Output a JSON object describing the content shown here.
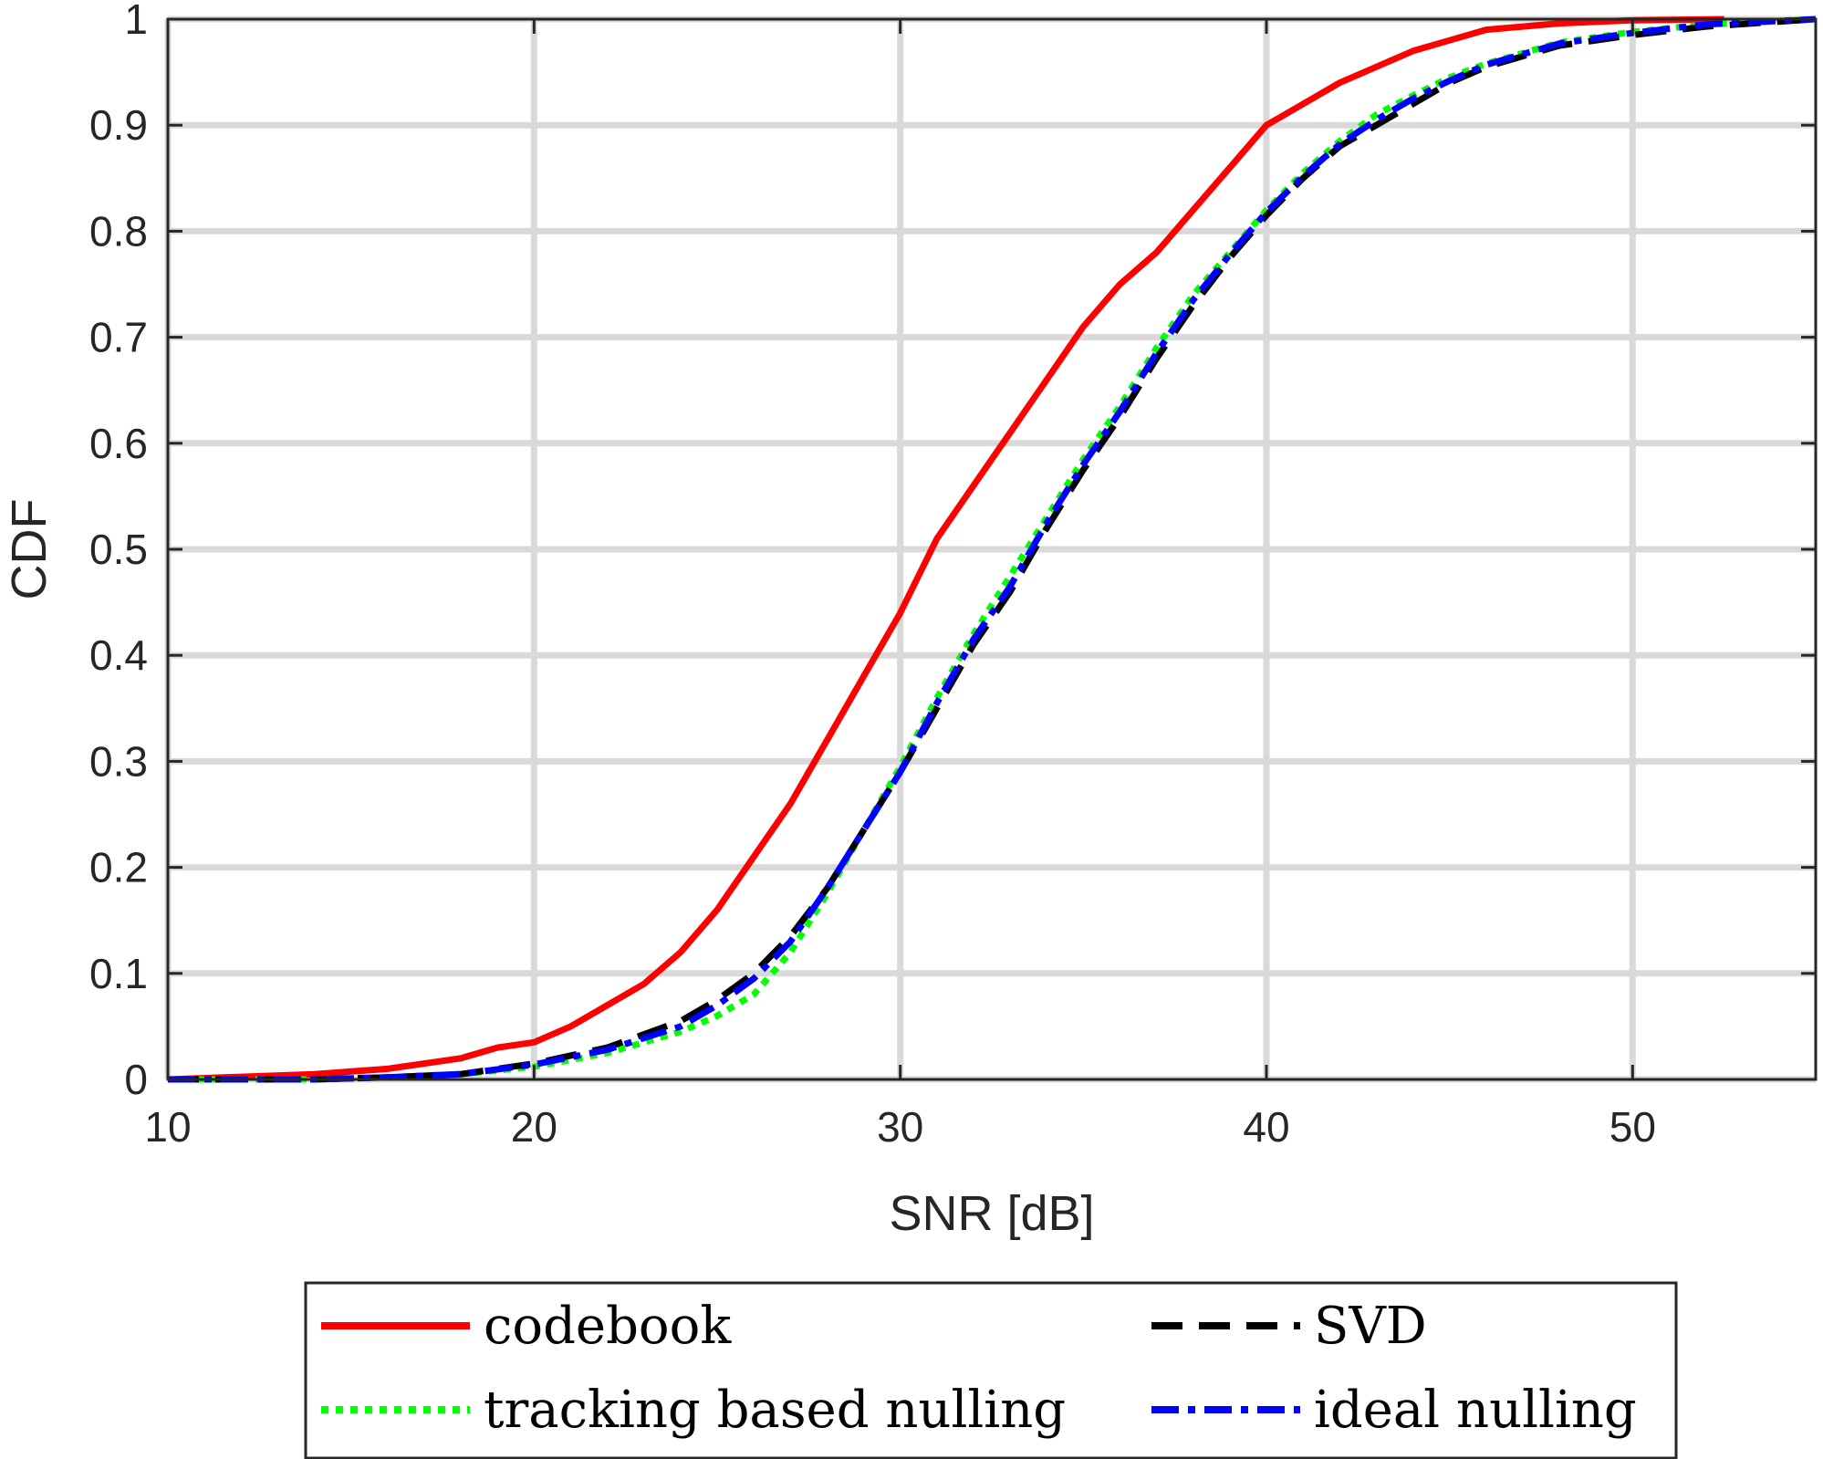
{
  "chart_data": {
    "type": "line",
    "xlabel": "SNR [dB]",
    "ylabel": "CDF",
    "xlim": [
      10,
      55
    ],
    "ylim": [
      0,
      1
    ],
    "xticks": [
      10,
      20,
      30,
      40,
      50
    ],
    "xtick_labels": [
      "10",
      "20",
      "30",
      "40",
      "50"
    ],
    "yticks": [
      0,
      0.1,
      0.2,
      0.3,
      0.4,
      0.5,
      0.6,
      0.7,
      0.8,
      0.9,
      1
    ],
    "ytick_labels": [
      "0",
      "0.1",
      "0.2",
      "0.3",
      "0.4",
      "0.5",
      "0.6",
      "0.7",
      "0.8",
      "0.9",
      "1"
    ],
    "grid": true,
    "legend_position": "bottom-outside",
    "series": [
      {
        "name": "codebook",
        "color": "#ff0000",
        "style": "solid",
        "x": [
          10,
          14,
          16,
          18,
          19,
          20,
          21,
          22,
          23,
          24,
          25,
          26,
          27,
          28,
          29,
          30,
          31,
          32,
          33,
          34,
          35,
          36,
          37,
          38,
          39,
          40,
          41,
          42,
          43,
          44,
          45,
          46,
          47,
          48,
          50,
          52.5
        ],
        "y": [
          0,
          0.005,
          0.01,
          0.02,
          0.03,
          0.035,
          0.05,
          0.07,
          0.09,
          0.12,
          0.16,
          0.21,
          0.26,
          0.32,
          0.38,
          0.44,
          0.51,
          0.56,
          0.61,
          0.66,
          0.71,
          0.75,
          0.78,
          0.82,
          0.86,
          0.9,
          0.92,
          0.94,
          0.955,
          0.97,
          0.98,
          0.99,
          0.993,
          0.996,
          0.999,
          1.0
        ]
      },
      {
        "name": "SVD",
        "color": "#000000",
        "style": "dashed",
        "x": [
          10,
          14,
          16,
          18,
          20,
          22,
          24,
          25,
          26,
          27,
          28,
          29,
          30,
          31,
          32,
          33,
          34,
          35,
          36,
          37,
          38,
          39,
          40,
          41,
          42,
          43,
          44,
          45,
          46,
          48,
          50,
          52,
          55
        ],
        "y": [
          0,
          0,
          0.002,
          0.005,
          0.015,
          0.03,
          0.055,
          0.075,
          0.1,
          0.135,
          0.18,
          0.235,
          0.29,
          0.35,
          0.41,
          0.46,
          0.52,
          0.575,
          0.625,
          0.68,
          0.73,
          0.775,
          0.815,
          0.85,
          0.88,
          0.9,
          0.92,
          0.94,
          0.955,
          0.975,
          0.985,
          0.993,
          1.0
        ]
      },
      {
        "name": "tracking based nulling",
        "color": "#00ff00",
        "style": "dotted",
        "x": [
          10,
          14,
          16,
          18,
          20,
          22,
          24,
          25,
          26,
          27,
          28,
          29,
          30,
          31,
          32,
          33,
          34,
          35,
          36,
          37,
          38,
          39,
          40,
          41,
          42,
          43,
          44,
          45,
          46,
          48,
          50,
          52,
          55
        ],
        "y": [
          0,
          0,
          0.002,
          0.005,
          0.012,
          0.025,
          0.045,
          0.06,
          0.08,
          0.12,
          0.175,
          0.235,
          0.295,
          0.36,
          0.42,
          0.475,
          0.53,
          0.585,
          0.635,
          0.69,
          0.74,
          0.78,
          0.82,
          0.855,
          0.885,
          0.91,
          0.928,
          0.945,
          0.958,
          0.978,
          0.988,
          0.995,
          1.0
        ]
      },
      {
        "name": "ideal nulling",
        "color": "#0000ff",
        "style": "dashdot",
        "x": [
          10,
          14,
          16,
          18,
          20,
          22,
          24,
          25,
          26,
          27,
          28,
          29,
          30,
          31,
          32,
          33,
          34,
          35,
          36,
          37,
          38,
          39,
          40,
          41,
          42,
          43,
          44,
          45,
          46,
          48,
          50,
          52,
          55
        ],
        "y": [
          0,
          0,
          0.002,
          0.005,
          0.014,
          0.028,
          0.05,
          0.07,
          0.095,
          0.13,
          0.18,
          0.235,
          0.29,
          0.355,
          0.415,
          0.465,
          0.525,
          0.58,
          0.63,
          0.685,
          0.735,
          0.778,
          0.818,
          0.852,
          0.882,
          0.905,
          0.925,
          0.942,
          0.957,
          0.977,
          0.987,
          0.995,
          1.0
        ]
      }
    ]
  }
}
